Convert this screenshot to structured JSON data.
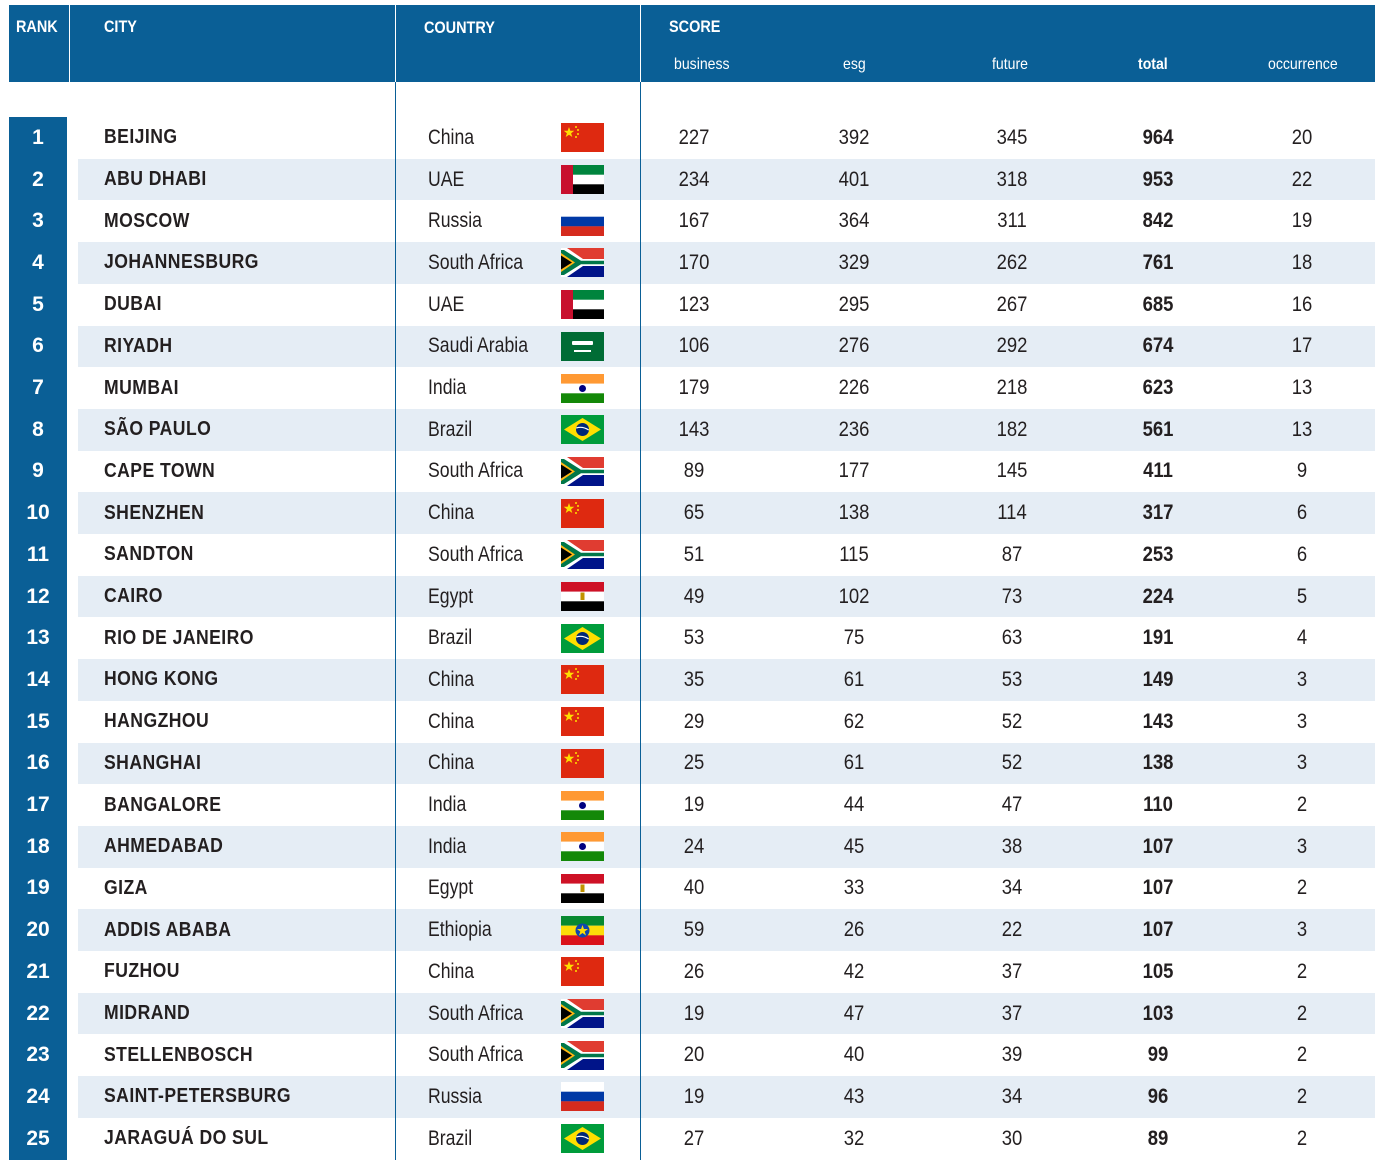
{
  "header": {
    "rank": "RANK",
    "city": "CITY",
    "country": "COUNTRY",
    "score": "SCORE",
    "business": "business",
    "esg": "esg",
    "future": "future",
    "total": "total",
    "occurrence": "occurrence"
  },
  "colors": {
    "header": "#0a5f96",
    "alt_row": "#e5edf5"
  },
  "rows": [
    {
      "rank": "1",
      "city": "BEIJING",
      "country": "China",
      "flag": "china-flag-icon",
      "business": "227",
      "esg": "392",
      "future": "345",
      "total": "964",
      "occurrence": "20"
    },
    {
      "rank": "2",
      "city": "ABU DHABI",
      "country": "UAE",
      "flag": "uae-flag-icon",
      "business": "234",
      "esg": "401",
      "future": "318",
      "total": "953",
      "occurrence": "22"
    },
    {
      "rank": "3",
      "city": "MOSCOW",
      "country": "Russia",
      "flag": "russia-flag-icon",
      "business": "167",
      "esg": "364",
      "future": "311",
      "total": "842",
      "occurrence": "19"
    },
    {
      "rank": "4",
      "city": "JOHANNESBURG",
      "country": "South Africa",
      "flag": "south-africa-flag-icon",
      "business": "170",
      "esg": "329",
      "future": "262",
      "total": "761",
      "occurrence": "18"
    },
    {
      "rank": "5",
      "city": "DUBAI",
      "country": "UAE",
      "flag": "uae-flag-icon",
      "business": "123",
      "esg": "295",
      "future": "267",
      "total": "685",
      "occurrence": "16"
    },
    {
      "rank": "6",
      "city": "RIYADH",
      "country": "Saudi Arabia",
      "flag": "saudi-arabia-flag-icon",
      "business": "106",
      "esg": "276",
      "future": "292",
      "total": "674",
      "occurrence": "17"
    },
    {
      "rank": "7",
      "city": "MUMBAI",
      "country": "India",
      "flag": "india-flag-icon",
      "business": "179",
      "esg": "226",
      "future": "218",
      "total": "623",
      "occurrence": "13"
    },
    {
      "rank": "8",
      "city": "SÃO PAULO",
      "country": "Brazil",
      "flag": "brazil-flag-icon",
      "business": "143",
      "esg": "236",
      "future": "182",
      "total": "561",
      "occurrence": "13"
    },
    {
      "rank": "9",
      "city": "CAPE TOWN",
      "country": "South Africa",
      "flag": "south-africa-flag-icon",
      "business": "89",
      "esg": "177",
      "future": "145",
      "total": "411",
      "occurrence": "9"
    },
    {
      "rank": "10",
      "city": "SHENZHEN",
      "country": "China",
      "flag": "china-flag-icon",
      "business": "65",
      "esg": "138",
      "future": "114",
      "total": "317",
      "occurrence": "6"
    },
    {
      "rank": "11",
      "city": "SANDTON",
      "country": "South Africa",
      "flag": "south-africa-flag-icon",
      "business": "51",
      "esg": "115",
      "future": "87",
      "total": "253",
      "occurrence": "6"
    },
    {
      "rank": "12",
      "city": "CAIRO",
      "country": "Egypt",
      "flag": "egypt-flag-icon",
      "business": "49",
      "esg": "102",
      "future": "73",
      "total": "224",
      "occurrence": "5"
    },
    {
      "rank": "13",
      "city": "RIO DE JANEIRO",
      "country": "Brazil",
      "flag": "brazil-flag-icon",
      "business": "53",
      "esg": "75",
      "future": "63",
      "total": "191",
      "occurrence": "4"
    },
    {
      "rank": "14",
      "city": "HONG KONG",
      "country": "China",
      "flag": "china-flag-icon",
      "business": "35",
      "esg": "61",
      "future": "53",
      "total": "149",
      "occurrence": "3"
    },
    {
      "rank": "15",
      "city": "HANGZHOU",
      "country": "China",
      "flag": "china-flag-icon",
      "business": "29",
      "esg": "62",
      "future": "52",
      "total": "143",
      "occurrence": "3"
    },
    {
      "rank": "16",
      "city": "SHANGHAI",
      "country": "China",
      "flag": "china-flag-icon",
      "business": "25",
      "esg": "61",
      "future": "52",
      "total": "138",
      "occurrence": "3"
    },
    {
      "rank": "17",
      "city": "BANGALORE",
      "country": "India",
      "flag": "india-flag-icon",
      "business": "19",
      "esg": "44",
      "future": "47",
      "total": "110",
      "occurrence": "2"
    },
    {
      "rank": "18",
      "city": "AHMEDABAD",
      "country": "India",
      "flag": "india-flag-icon",
      "business": "24",
      "esg": "45",
      "future": "38",
      "total": "107",
      "occurrence": "3"
    },
    {
      "rank": "19",
      "city": "GIZA",
      "country": "Egypt",
      "flag": "egypt-flag-icon",
      "business": "40",
      "esg": "33",
      "future": "34",
      "total": "107",
      "occurrence": "2"
    },
    {
      "rank": "20",
      "city": "ADDIS ABABA",
      "country": "Ethiopia",
      "flag": "ethiopia-flag-icon",
      "business": "59",
      "esg": "26",
      "future": "22",
      "total": "107",
      "occurrence": "3"
    },
    {
      "rank": "21",
      "city": "FUZHOU",
      "country": "China",
      "flag": "china-flag-icon",
      "business": "26",
      "esg": "42",
      "future": "37",
      "total": "105",
      "occurrence": "2"
    },
    {
      "rank": "22",
      "city": "MIDRAND",
      "country": "South Africa",
      "flag": "south-africa-flag-icon",
      "business": "19",
      "esg": "47",
      "future": "37",
      "total": "103",
      "occurrence": "2"
    },
    {
      "rank": "23",
      "city": "STELLENBOSCH",
      "country": "South Africa",
      "flag": "south-africa-flag-icon",
      "business": "20",
      "esg": "40",
      "future": "39",
      "total": "99",
      "occurrence": "2"
    },
    {
      "rank": "24",
      "city": "SAINT-PETERSBURG",
      "country": "Russia",
      "flag": "russia-flag-icon",
      "business": "19",
      "esg": "43",
      "future": "34",
      "total": "96",
      "occurrence": "2"
    },
    {
      "rank": "25",
      "city": "JARAGUÁ DO SUL",
      "country": "Brazil",
      "flag": "brazil-flag-icon",
      "business": "27",
      "esg": "32",
      "future": "30",
      "total": "89",
      "occurrence": "2"
    }
  ]
}
